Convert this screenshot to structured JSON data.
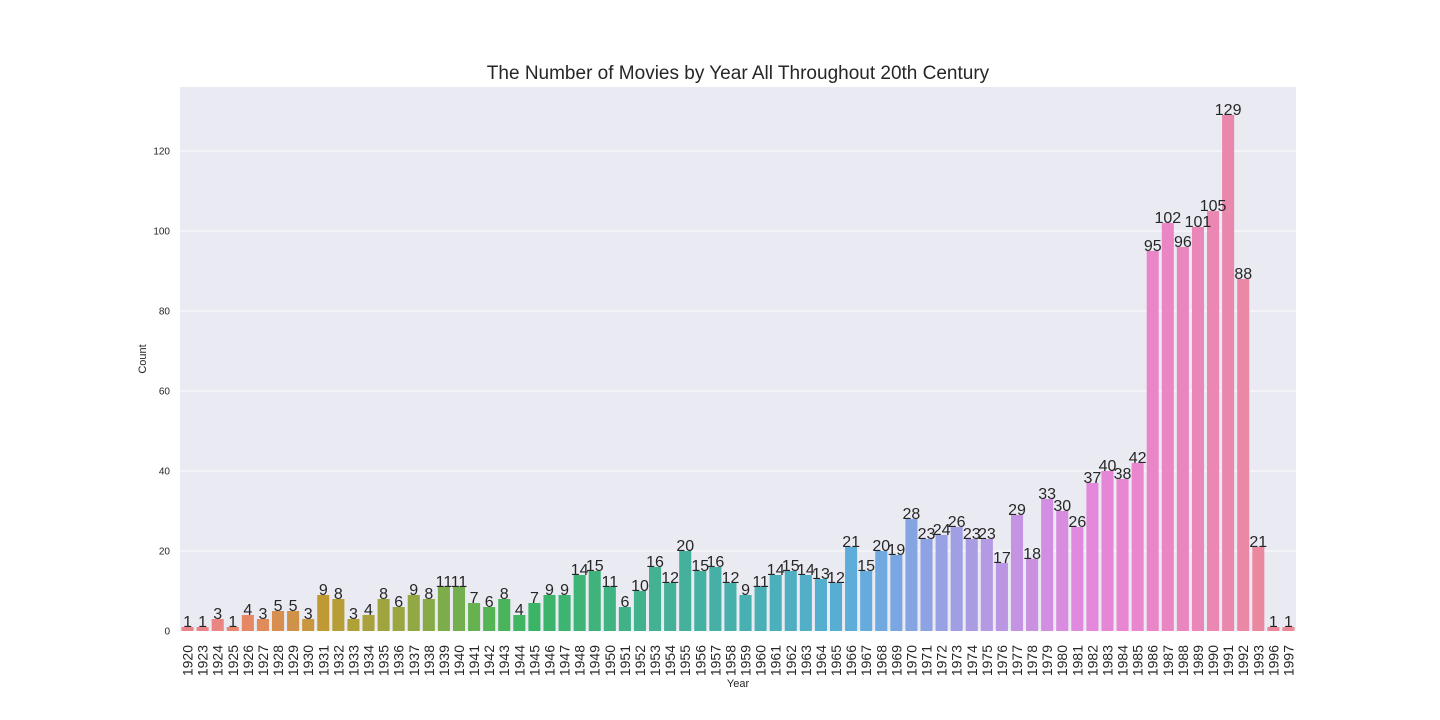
{
  "chart_data": {
    "type": "bar",
    "title": "The Number of Movies by Year All Throughout 20th Century",
    "xlabel": "Year",
    "ylabel": "Count",
    "ylim": [
      0,
      136
    ],
    "yticks": [
      0,
      20,
      40,
      60,
      80,
      100,
      120
    ],
    "grid": true,
    "background": "#eaeaf2",
    "categories": [
      "1920",
      "1923",
      "1924",
      "1925",
      "1926",
      "1927",
      "1928",
      "1929",
      "1930",
      "1931",
      "1932",
      "1933",
      "1934",
      "1935",
      "1936",
      "1937",
      "1938",
      "1939",
      "1940",
      "1941",
      "1942",
      "1943",
      "1944",
      "1945",
      "1946",
      "1947",
      "1948",
      "1949",
      "1950",
      "1951",
      "1952",
      "1953",
      "1954",
      "1955",
      "1956",
      "1957",
      "1958",
      "1959",
      "1960",
      "1961",
      "1962",
      "1963",
      "1964",
      "1965",
      "1966",
      "1967",
      "1968",
      "1969",
      "1970",
      "1971",
      "1972",
      "1973",
      "1974",
      "1975",
      "1976",
      "1977",
      "1978",
      "1979",
      "1980",
      "1981",
      "1982",
      "1983",
      "1984",
      "1985",
      "1986",
      "1987",
      "1988",
      "1989",
      "1990",
      "1991",
      "1992",
      "1993",
      "1996",
      "1997"
    ],
    "values": [
      1,
      1,
      3,
      1,
      4,
      3,
      5,
      5,
      3,
      9,
      8,
      3,
      4,
      8,
      6,
      9,
      8,
      11,
      11,
      7,
      6,
      8,
      4,
      7,
      9,
      9,
      14,
      15,
      11,
      6,
      10,
      16,
      12,
      20,
      15,
      16,
      12,
      9,
      11,
      14,
      15,
      14,
      13,
      12,
      21,
      15,
      20,
      19,
      28,
      23,
      24,
      26,
      23,
      23,
      17,
      29,
      18,
      33,
      30,
      26,
      37,
      40,
      38,
      42,
      95,
      102,
      96,
      101,
      105,
      129,
      88,
      21,
      1,
      1
    ],
    "colors": [
      "#ea8489",
      "#ea848a",
      "#ea8582",
      "#ea866f",
      "#e68863",
      "#e08b59",
      "#d78e4e",
      "#d09248",
      "#c9953d",
      "#c09933",
      "#b79d35",
      "#b0a038",
      "#a9a23c",
      "#a0a43e",
      "#9aa640",
      "#92a845",
      "#88ab47",
      "#7dad4b",
      "#73af4e",
      "#66b150",
      "#55b453",
      "#4ab45a",
      "#41b561",
      "#3ab566",
      "#3cb46c",
      "#3db472",
      "#3fb477",
      "#40b37d",
      "#40b382",
      "#41b288",
      "#42b28c",
      "#42b292",
      "#44b198",
      "#45b19d",
      "#45b1a2",
      "#47b0a6",
      "#48b0ac",
      "#49b0b1",
      "#4ab0b6",
      "#4cafbc",
      "#4fafc1",
      "#52afc7",
      "#54aecd",
      "#58add3",
      "#5eacd9",
      "#66abdd",
      "#70a9e0",
      "#7aa7e1",
      "#84a5e2",
      "#8ea3e3",
      "#98a1e4",
      "#a19fe4",
      "#aa9ce3",
      "#b39ae3",
      "#bb97e3",
      "#c494e2",
      "#cb91e1",
      "#d28ee0",
      "#d98cdf",
      "#df8adf",
      "#e388db",
      "#e586d7",
      "#e886d2",
      "#e986cd",
      "#ea86c8",
      "#ea86c3",
      "#ea86be",
      "#ea87b8",
      "#ea87b2",
      "#ea87ac",
      "#ea88a6",
      "#ea88a0",
      "#ea889b",
      "#ea8995"
    ]
  }
}
